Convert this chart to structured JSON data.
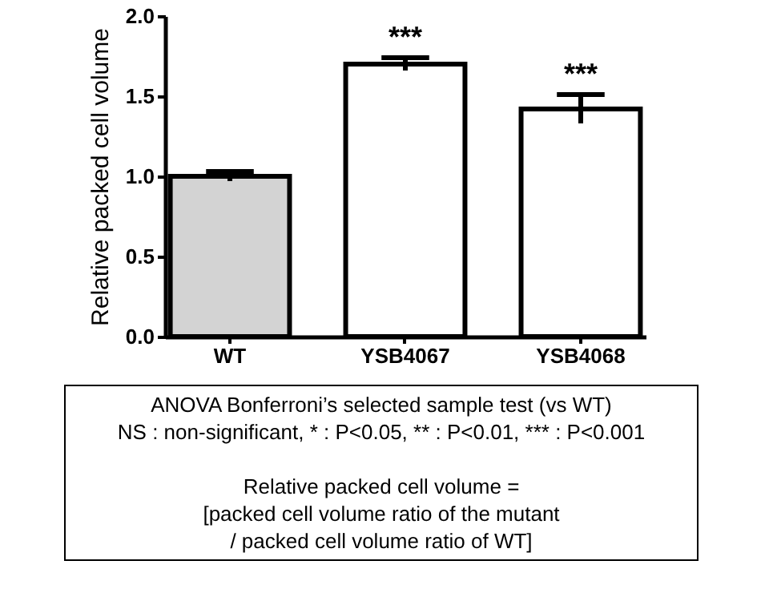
{
  "chart_data": {
    "type": "bar",
    "ylabel": "Relative packed cell volume",
    "categories": [
      "WT",
      "YSB4067",
      "YSB4068"
    ],
    "values": [
      1.0,
      1.7,
      1.42
    ],
    "errors": [
      0.03,
      0.04,
      0.09
    ],
    "colors": [
      "#d3d3d3",
      "#ffffff",
      "#ffffff"
    ],
    "ylim": [
      0,
      2.0
    ],
    "yticks": [
      {
        "value": 0,
        "label": "0.0"
      },
      {
        "value": 0.5,
        "label": "0.5"
      },
      {
        "value": 1,
        "label": "1.0"
      },
      {
        "value": 1.5,
        "label": "1.5"
      },
      {
        "value": 2,
        "label": "2.0"
      }
    ],
    "grid": false,
    "annotations": [
      {
        "text": "***",
        "x": "YSB4067",
        "y": 1.74
      },
      {
        "text": "***",
        "x": "YSB4068",
        "y": 1.51
      },
      "ANOVA Bonferroni’s selected sample test (vs WT)",
      "NS : non-significant, * : P<0.05, ** : P<0.01, *** : P<0.001",
      "Relative packed cell volume =",
      "[packed cell volume ratio of the mutant",
      "/ packed cell volume ratio of WT]"
    ]
  }
}
